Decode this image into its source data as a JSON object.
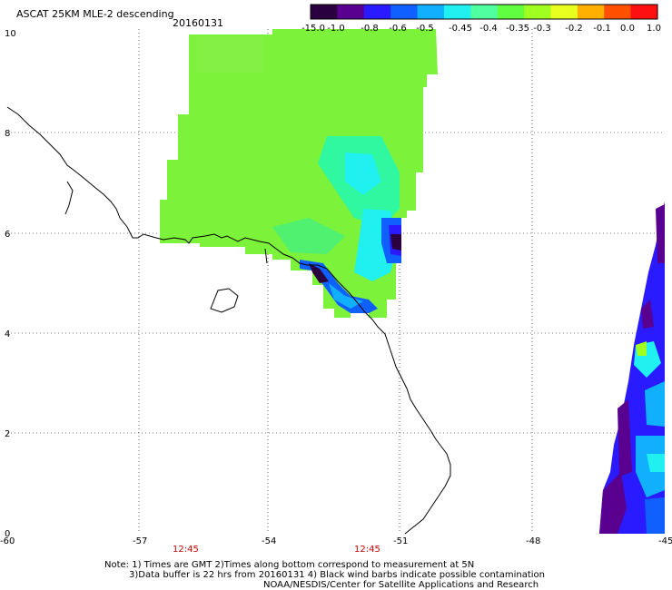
{
  "title": "ASCAT 25KM MLE-2 descending",
  "date": "20160131",
  "colorbar": {
    "labels": [
      "-15.0",
      "-1.0",
      "-0.8",
      "-0.6",
      "-0.5",
      "-0.45",
      "-0.4",
      "-0.35",
      "-0.3",
      "-0.2",
      "-0.1",
      "0.0",
      "1.0"
    ],
    "colors": [
      "#2a0040",
      "#5a0090",
      "#2a1aff",
      "#1060ff",
      "#10b0ff",
      "#20f0f0",
      "#50ffa0",
      "#60ff40",
      "#a0ff20",
      "#e8ff20",
      "#ffb000",
      "#ff5000",
      "#ff1010"
    ]
  },
  "axes": {
    "x_labels": [
      "-60",
      "-57",
      "-54",
      "-51",
      "-48",
      "-45"
    ],
    "y_labels": [
      "10",
      "8",
      "6",
      "4",
      "2",
      "0"
    ]
  },
  "times": [
    "12:45",
    "12:45"
  ],
  "notes": {
    "line1": "Note: 1) Times are GMT 2)Times along bottom correspond to measurement at 5N",
    "line2": "3)Data buffer is 22 hrs from 20160131 4) Black wind barbs indicate possible contamination",
    "credit": "NOAA/NESDIS/Center for Satellite Applications and Research"
  }
}
